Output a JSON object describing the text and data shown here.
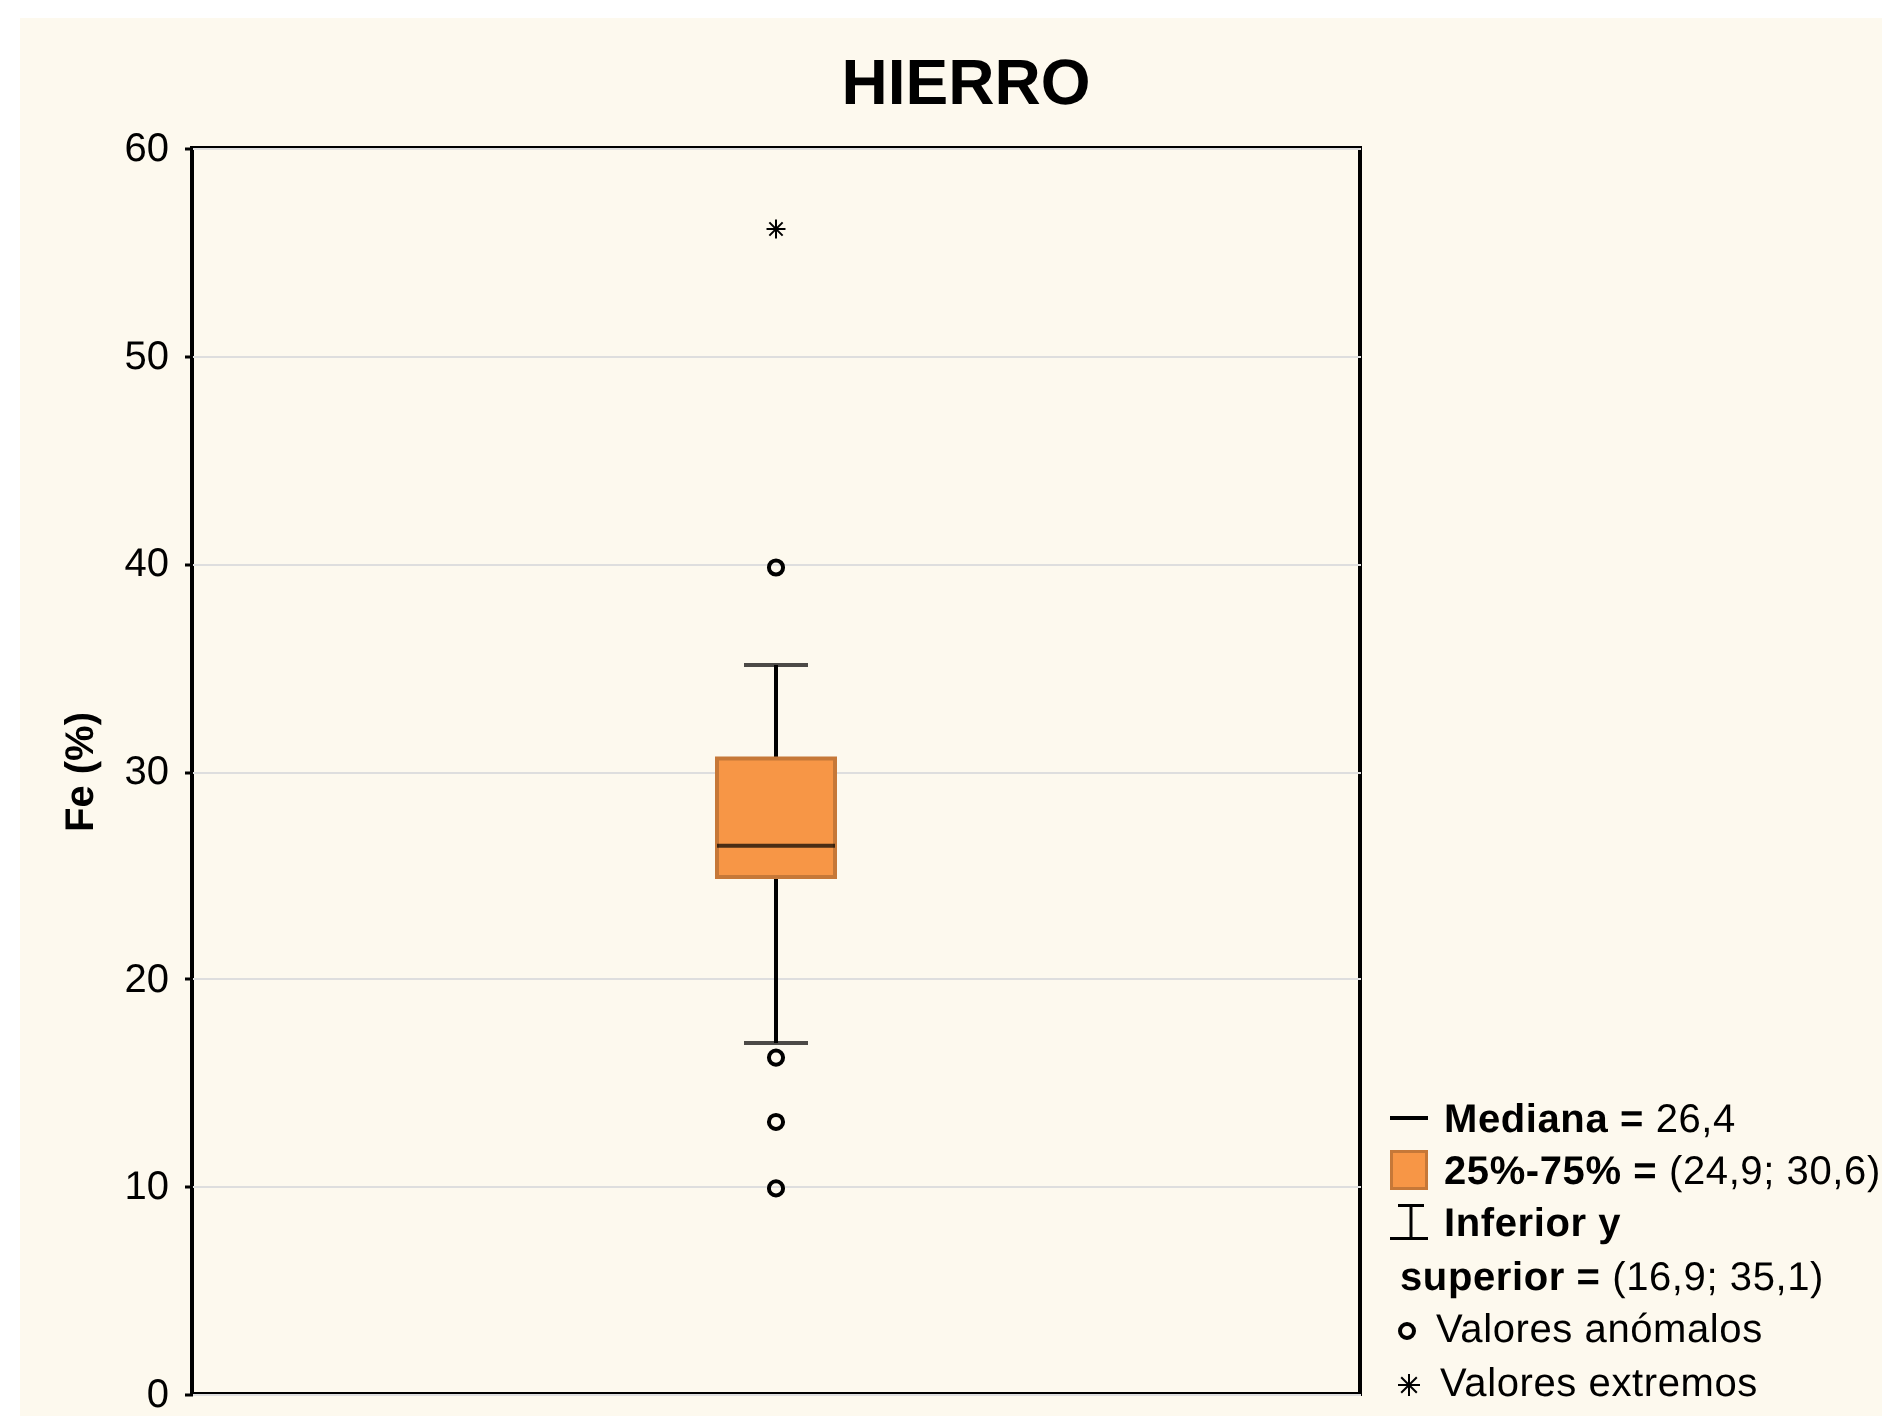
{
  "chart_data": {
    "type": "box",
    "title": "HIERRO",
    "ylabel": "Fe (%)",
    "categories": [
      null
    ],
    "ylim": [
      0,
      60
    ],
    "yticks": [
      0,
      10,
      20,
      30,
      40,
      50,
      60
    ],
    "grid": "y",
    "legend": "bottom right",
    "series": [
      {
        "type": "box",
        "color": "#f79646",
        "boxes": [
          {
            "low": 16.9,
            "q1": 24.9,
            "median": 26.4,
            "q3": 30.6,
            "high": 35.1
          }
        ]
      },
      {
        "type": "scatter",
        "name": "Valores anómalos",
        "color": "#000000",
        "marker": "circle",
        "x": [
          null,
          null,
          null,
          null
        ],
        "values": [
          39.8,
          16.2,
          13.1,
          9.9
        ]
      },
      {
        "type": "scatter",
        "name": "Valores extremos",
        "color": "#000000",
        "marker": "cross",
        "x": [
          null
        ],
        "values": [
          56.1
        ]
      }
    ],
    "annotations": [
      "Mediana = 26,4",
      "25%-75% = (24,9; 30,6)",
      "Inferior y superior = (16,9; 35,1)"
    ]
  }
}
